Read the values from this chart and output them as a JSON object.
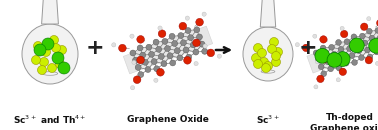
{
  "bg_color": "#ffffff",
  "flask1_label": "Sc$^{3+}$ and Th$^{4+}$",
  "flask2_label": "Graphene Oxide",
  "flask3_label": "Sc$^{3+}$",
  "flask4_label": "Th-doped\nGraphene oxide",
  "sc_color": "#ccee00",
  "sc_edge_color": "#999900",
  "th_color": "#33cc00",
  "th_edge_color": "#007700",
  "c_color": "#888888",
  "o_color": "#dd2200",
  "o_edge_color": "#990000",
  "h_color": "#dddddd",
  "font_size": 6.5,
  "font_weight": "bold",
  "flask_face": "#f2f2f2",
  "flask_edge": "#999999",
  "lw": 0.7
}
